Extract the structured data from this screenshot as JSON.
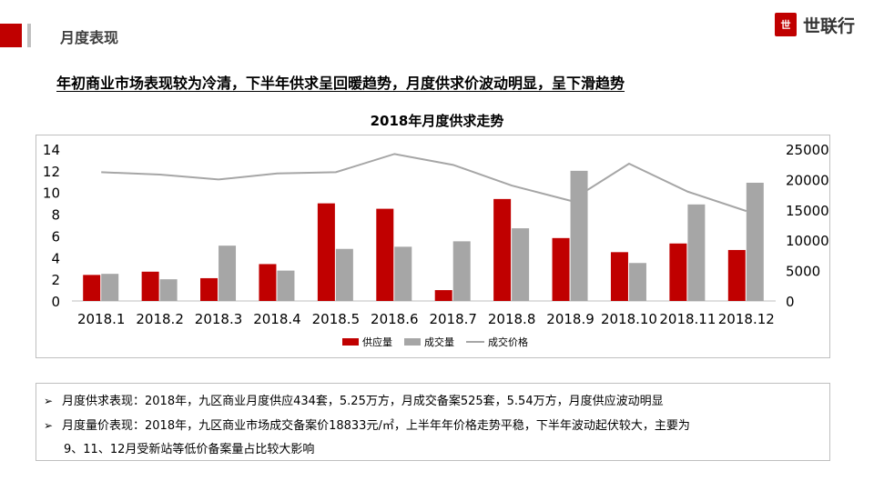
{
  "header": {
    "section_title": "月度表现",
    "logo_mark": "世",
    "logo_text": "世联行"
  },
  "headline": "年初商业市场表现较为冷清，下半年供求呈回暖趋势，月度供求价波动明显，呈下滑趋势",
  "chart_data": {
    "type": "bar",
    "title": "2018年月度供求走势",
    "categories": [
      "2018.1",
      "2018.2",
      "2018.3",
      "2018.4",
      "2018.5",
      "2018.6",
      "2018.7",
      "2018.8",
      "2018.9",
      "2018.10",
      "2018.11",
      "2018.12"
    ],
    "series": [
      {
        "name": "供应量",
        "type": "bar",
        "axis": "left",
        "color": "#c00000",
        "values": [
          2.4,
          2.7,
          2.1,
          3.4,
          9.0,
          8.5,
          1.0,
          9.4,
          5.8,
          4.5,
          5.3,
          4.7
        ]
      },
      {
        "name": "成交量",
        "type": "bar",
        "axis": "left",
        "color": "#a6a6a6",
        "values": [
          2.5,
          2.0,
          5.1,
          2.8,
          4.8,
          5.0,
          5.5,
          6.7,
          12.0,
          3.5,
          8.9,
          10.9
        ]
      },
      {
        "name": "成交价格",
        "type": "line",
        "axis": "right",
        "color": "#a6a6a6",
        "values": [
          21200,
          20800,
          20000,
          21000,
          21200,
          24200,
          22400,
          19000,
          16500,
          22600,
          18000,
          14800
        ]
      }
    ],
    "left_axis": {
      "min": 0,
      "max": 14,
      "ticks": [
        0,
        2,
        4,
        6,
        8,
        10,
        12,
        14
      ]
    },
    "right_axis": {
      "min": 0,
      "max": 25000,
      "ticks": [
        0,
        5000,
        10000,
        15000,
        20000,
        25000
      ]
    },
    "grid": false,
    "legend": "bottom"
  },
  "notes": {
    "bullet": "➢",
    "line1": "月度供求表现：2018年，九区商业月度供应434套，5.25万方，月成交备案525套，5.54万方，月度供应波动明显",
    "line2": "月度量价表现：2018年，九区商业市场成交备案价18833元/㎡，上半年年价格走势平稳，下半年波动起伏较大，主要为",
    "line2_cont": "9、11、12月受新站等低价备案量占比较大影响"
  }
}
